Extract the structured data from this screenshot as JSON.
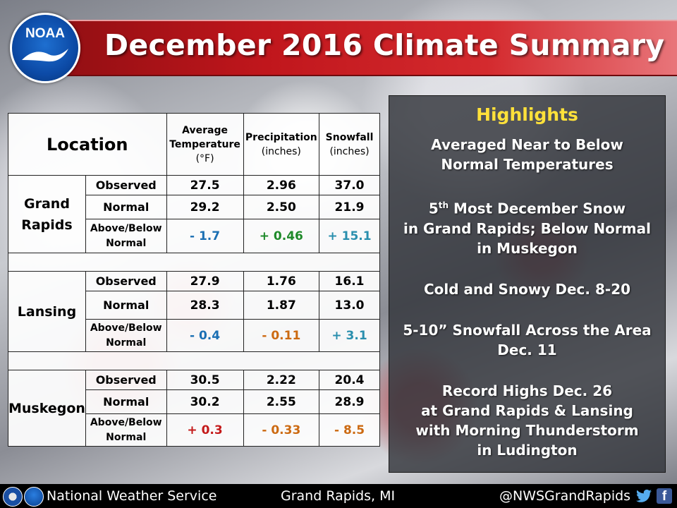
{
  "title": "December 2016 Climate Summary",
  "logo": {
    "text": "NOAA",
    "icon": "noaa-bird-icon"
  },
  "table": {
    "headers": {
      "location": "Location",
      "avg_temp_line1": "Average",
      "avg_temp_line2": "Temperature",
      "avg_temp_unit": "(°F)",
      "precip": "Precipitation",
      "precip_unit": "(inches)",
      "snow": "Snowfall",
      "snow_unit": "(inches)"
    },
    "row_labels": {
      "observed": "Observed",
      "normal": "Normal",
      "above_below_1": "Above/Below",
      "above_below_2": "Normal"
    },
    "locations": [
      {
        "name_line1": "Grand",
        "name_line2": "Rapids",
        "observed": [
          "27.5",
          "2.96",
          "37.0"
        ],
        "normal": [
          "29.2",
          "2.50",
          "21.9"
        ],
        "departure": [
          "- 1.7",
          "+ 0.46",
          "+ 15.1"
        ]
      },
      {
        "name_line1": "Lansing",
        "name_line2": "",
        "observed": [
          "27.9",
          "1.76",
          "16.1"
        ],
        "normal": [
          "28.3",
          "1.87",
          "13.0"
        ],
        "departure": [
          "- 0.4",
          "- 0.11",
          "+ 3.1"
        ]
      },
      {
        "name_line1": "Muskegon",
        "name_line2": "",
        "observed": [
          "30.5",
          "2.22",
          "20.4"
        ],
        "normal": [
          "30.2",
          "2.55",
          "28.9"
        ],
        "departure": [
          "+ 0.3",
          "- 0.33",
          "- 8.5"
        ]
      }
    ],
    "colors": {
      "blue": "#1b6fb3",
      "green": "#1f8a2a",
      "teal": "#2a8fae",
      "orange": "#cc6a12",
      "red": "#c41a1a"
    }
  },
  "highlights": {
    "title": "Highlights",
    "item1_line1": "Averaged Near to Below",
    "item1_line2": "Normal Temperatures",
    "item2_num": "5",
    "item2_sup": "th",
    "item2_line1_rest": " Most December Snow",
    "item2_line2": "in Grand Rapids; Below Normal",
    "item2_line3": "in Muskegon",
    "item3": "Cold and Snowy Dec. 8-20",
    "item4_line1": "5-10” Snowfall Across the Area",
    "item4_line2": "Dec. 11",
    "item5_line1": "Record Highs Dec. 26",
    "item5_line2": "at Grand Rapids & Lansing",
    "item5_line3": "with Morning Thunderstorm",
    "item5_line4": "in Ludington"
  },
  "footer": {
    "left": "National Weather Service",
    "middle": "Grand Rapids, MI",
    "right": "@NWSGrandRapids",
    "icons": [
      "nws-logo-icon",
      "noaa-logo-icon",
      "twitter-icon",
      "facebook-icon"
    ],
    "fb_letter": "f"
  }
}
